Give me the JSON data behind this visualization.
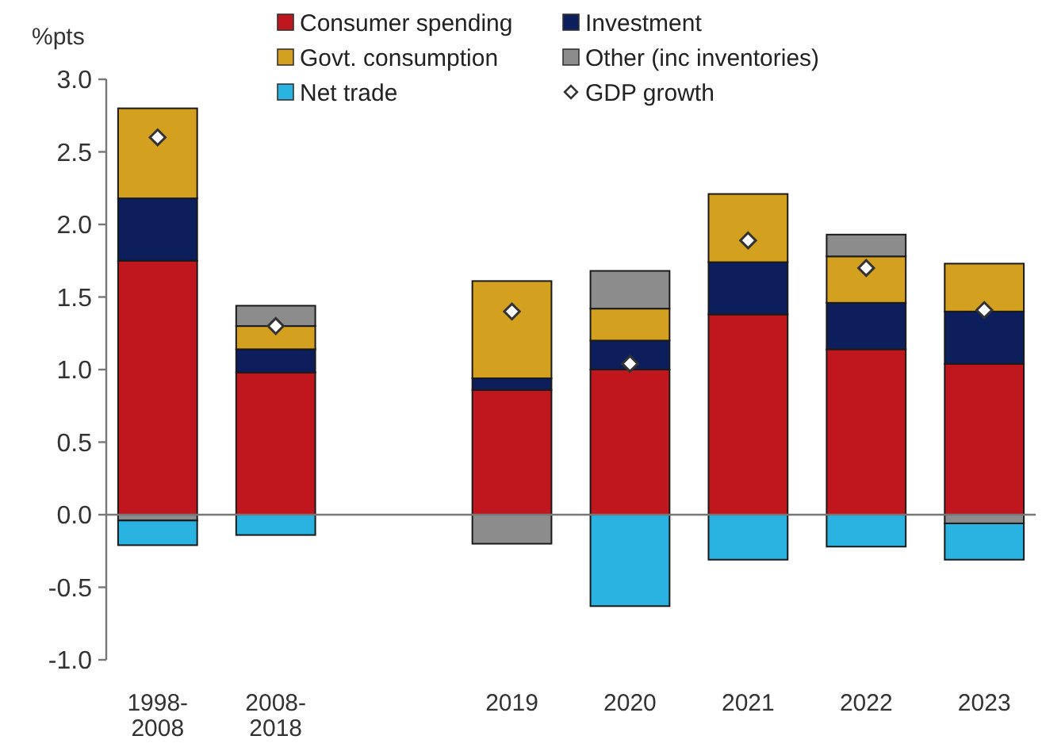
{
  "chart_data": {
    "type": "bar",
    "stacked": true,
    "ylabel": "%pts",
    "categories": [
      "1998-2008",
      "2008-2018",
      null,
      "2019",
      "2020",
      "2021",
      "2022",
      "2023"
    ],
    "series": [
      {
        "name": "Consumer spending",
        "color": "#c0171e",
        "values": [
          1.75,
          0.98,
          null,
          0.86,
          1.0,
          1.38,
          1.14,
          1.04
        ]
      },
      {
        "name": "Investment",
        "color": "#0c1f5c",
        "values": [
          0.43,
          0.16,
          null,
          0.08,
          0.2,
          0.36,
          0.32,
          0.36
        ]
      },
      {
        "name": "Govt. consumption",
        "color": "#d4a020",
        "values": [
          0.62,
          0.16,
          null,
          0.67,
          0.22,
          0.47,
          0.32,
          0.33
        ]
      },
      {
        "name": "Other (inc inventories)",
        "color": "#8c8c8c",
        "values": [
          -0.04,
          0.14,
          null,
          -0.2,
          0.26,
          0,
          0.15,
          -0.06
        ]
      },
      {
        "name": "Net trade",
        "color": "#2ab2e0",
        "values": [
          -0.17,
          -0.14,
          null,
          0,
          -0.63,
          -0.31,
          -0.22,
          -0.25
        ]
      },
      {
        "name": "GDP growth",
        "type": "scatter",
        "marker": "diamond",
        "color": "#ffffff",
        "values": [
          2.6,
          1.3,
          null,
          1.4,
          1.04,
          1.89,
          1.7,
          1.41
        ]
      }
    ],
    "ylim": [
      -1,
      3
    ],
    "yticks": [
      {
        "value": -1,
        "label": "-1.0"
      },
      {
        "value": -0.5,
        "label": "-0.5"
      },
      {
        "value": 0,
        "label": "0.0"
      },
      {
        "value": 0.5,
        "label": "0.5"
      },
      {
        "value": 1,
        "label": "1.0"
      },
      {
        "value": 1.5,
        "label": "1.5"
      },
      {
        "value": 2,
        "label": "2.0"
      },
      {
        "value": 2.5,
        "label": "2.5"
      },
      {
        "value": 3,
        "label": "3.0"
      }
    ],
    "legend": "top"
  }
}
